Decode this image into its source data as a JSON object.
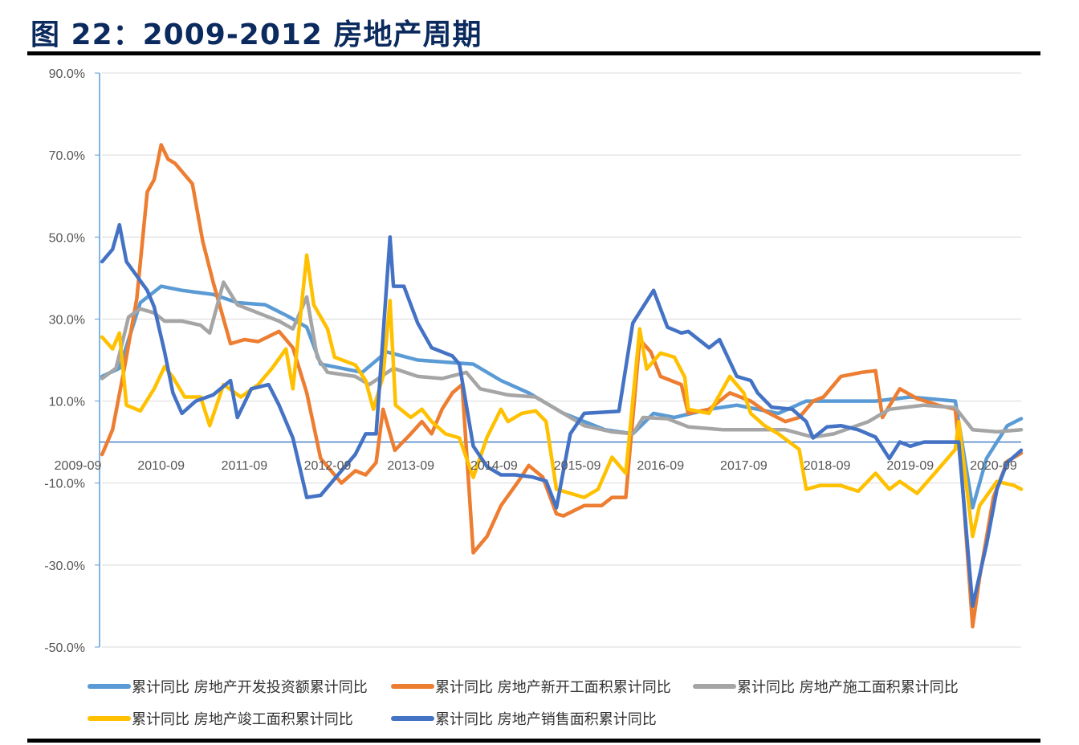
{
  "title": "图 22：2009-2012 房地产周期",
  "chart_data": {
    "type": "line",
    "title": "图 22：2009-2012 房地产周期",
    "xlabel": "",
    "ylabel": "",
    "x_unit": "months since 2009-09",
    "ylim": [
      -50,
      90
    ],
    "y_ticks": [
      "90.0%",
      "70.0%",
      "50.0%",
      "30.0%",
      "10.0%",
      "-10.0%",
      "-30.0%",
      "-50.0%"
    ],
    "y_tick_values": [
      90,
      70,
      50,
      30,
      10,
      -10,
      -30,
      -50
    ],
    "x_ticks": [
      "2009-09",
      "2010-09",
      "2011-09",
      "2012-09",
      "2013-09",
      "2014-09",
      "2015-09",
      "2016-09",
      "2017-09",
      "2018-09",
      "2019-09",
      "2020-09"
    ],
    "grid": true,
    "legend_position": "bottom",
    "series": [
      {
        "name": "累计同比 房地产开发投资额累计同比",
        "color": "#5b9bd5",
        "points": [
          [
            3.5,
            16
          ],
          [
            6,
            18
          ],
          [
            9,
            34
          ],
          [
            12,
            38
          ],
          [
            15,
            37
          ],
          [
            19.5,
            36
          ],
          [
            23,
            34
          ],
          [
            27,
            33.5
          ],
          [
            30.5,
            30.5
          ],
          [
            33,
            28
          ],
          [
            35,
            19
          ],
          [
            41,
            17
          ],
          [
            44.5,
            22
          ],
          [
            49,
            20
          ],
          [
            57,
            19
          ],
          [
            61,
            15
          ],
          [
            65,
            12
          ],
          [
            70,
            7
          ],
          [
            76,
            3
          ],
          [
            80,
            2
          ],
          [
            83,
            7
          ],
          [
            86,
            6
          ],
          [
            91,
            8
          ],
          [
            95,
            9
          ],
          [
            101,
            7
          ],
          [
            105,
            10
          ],
          [
            110,
            10
          ],
          [
            115,
            10
          ],
          [
            120,
            11
          ],
          [
            126.5,
            10
          ],
          [
            129,
            -16
          ],
          [
            131,
            -4
          ],
          [
            134,
            4
          ],
          [
            136,
            5.7
          ]
        ]
      },
      {
        "name": "累计同比 房地产新开工面积累计同比",
        "color": "#ed7d31",
        "points": [
          [
            3.5,
            -3
          ],
          [
            5,
            3
          ],
          [
            6.7,
            18
          ],
          [
            8.5,
            35
          ],
          [
            10,
            61
          ],
          [
            11,
            64
          ],
          [
            12,
            72.5
          ],
          [
            13,
            69
          ],
          [
            14,
            68
          ],
          [
            16.5,
            63
          ],
          [
            18,
            49
          ],
          [
            19.5,
            39
          ],
          [
            22,
            24
          ],
          [
            24,
            25
          ],
          [
            26,
            24.5
          ],
          [
            29,
            27
          ],
          [
            31,
            23
          ],
          [
            33,
            12
          ],
          [
            35,
            -4
          ],
          [
            38,
            -10
          ],
          [
            40,
            -7
          ],
          [
            41.5,
            -8
          ],
          [
            43,
            -5
          ],
          [
            44,
            8
          ],
          [
            45.7,
            -2
          ],
          [
            48,
            2
          ],
          [
            49.6,
            5
          ],
          [
            51,
            2
          ],
          [
            52.5,
            8
          ],
          [
            54,
            12
          ],
          [
            55.4,
            14
          ],
          [
            57,
            -27
          ],
          [
            59,
            -23
          ],
          [
            61,
            -15.5
          ],
          [
            63.5,
            -9.6
          ],
          [
            65,
            -5.7
          ],
          [
            67,
            -8.5
          ],
          [
            69,
            -17.5
          ],
          [
            70,
            -18
          ],
          [
            73,
            -15.5
          ],
          [
            75.5,
            -15.5
          ],
          [
            77,
            -13.5
          ],
          [
            79,
            -13.5
          ],
          [
            81,
            25
          ],
          [
            82.6,
            22
          ],
          [
            84,
            16
          ],
          [
            87,
            14
          ],
          [
            88,
            7
          ],
          [
            91,
            8
          ],
          [
            94,
            12
          ],
          [
            97,
            10
          ],
          [
            99,
            7.6
          ],
          [
            102,
            5
          ],
          [
            104,
            6
          ],
          [
            106,
            10
          ],
          [
            107.5,
            11
          ],
          [
            110,
            16
          ],
          [
            113,
            17
          ],
          [
            115,
            17.4
          ],
          [
            116,
            6
          ],
          [
            118.5,
            13
          ],
          [
            121,
            10.6
          ],
          [
            124,
            9
          ],
          [
            126.5,
            8
          ],
          [
            127.5,
            -9.6
          ],
          [
            129,
            -45
          ],
          [
            130,
            -33
          ],
          [
            132,
            -13.5
          ],
          [
            134,
            -4.7
          ],
          [
            136,
            -2.7
          ]
        ]
      },
      {
        "name": "累计同比 房地产施工面积累计同比",
        "color": "#a5a5a5",
        "points": [
          [
            3.5,
            15.5
          ],
          [
            5.5,
            18
          ],
          [
            7.3,
            30.5
          ],
          [
            9,
            32.5
          ],
          [
            11,
            31.5
          ],
          [
            12.5,
            29.5
          ],
          [
            15,
            29.5
          ],
          [
            17.7,
            28.5
          ],
          [
            19,
            26.6
          ],
          [
            21,
            39
          ],
          [
            23,
            33.5
          ],
          [
            26,
            31.5
          ],
          [
            29,
            29.5
          ],
          [
            31,
            27.6
          ],
          [
            33,
            35.4
          ],
          [
            34.5,
            20.7
          ],
          [
            36,
            17
          ],
          [
            40,
            16
          ],
          [
            42,
            14
          ],
          [
            45.5,
            18
          ],
          [
            49,
            16
          ],
          [
            52.5,
            15.5
          ],
          [
            56,
            17
          ],
          [
            58,
            13
          ],
          [
            62,
            11.5
          ],
          [
            66,
            11
          ],
          [
            70,
            7
          ],
          [
            73,
            4
          ],
          [
            77,
            2.5
          ],
          [
            80,
            2
          ],
          [
            81.5,
            6
          ],
          [
            85,
            5.7
          ],
          [
            88,
            3.7
          ],
          [
            93,
            3
          ],
          [
            98,
            3
          ],
          [
            102,
            3
          ],
          [
            106,
            1.2
          ],
          [
            109,
            2
          ],
          [
            114,
            5
          ],
          [
            117,
            8
          ],
          [
            122,
            9
          ],
          [
            126.5,
            8.4
          ],
          [
            129,
            3
          ],
          [
            132.5,
            2.5
          ],
          [
            136,
            3
          ]
        ]
      },
      {
        "name": "累计同比 房地产竣工面积累计同比",
        "color": "#ffc000",
        "points": [
          [
            3.5,
            25.6
          ],
          [
            5,
            22.7
          ],
          [
            6,
            26.6
          ],
          [
            7,
            9
          ],
          [
            9,
            7.6
          ],
          [
            11,
            13
          ],
          [
            12.5,
            18.4
          ],
          [
            13.7,
            15.8
          ],
          [
            15.4,
            11
          ],
          [
            17.7,
            11
          ],
          [
            19,
            4
          ],
          [
            21,
            14
          ],
          [
            23.5,
            11
          ],
          [
            26,
            14
          ],
          [
            28,
            18
          ],
          [
            30,
            22.7
          ],
          [
            31,
            13
          ],
          [
            33,
            45.6
          ],
          [
            34,
            33.5
          ],
          [
            36,
            27.6
          ],
          [
            37,
            20.7
          ],
          [
            40,
            18.8
          ],
          [
            41.5,
            15
          ],
          [
            42.6,
            8
          ],
          [
            44,
            16
          ],
          [
            45,
            34.5
          ],
          [
            45.8,
            9
          ],
          [
            48,
            6
          ],
          [
            49.6,
            8
          ],
          [
            51,
            5
          ],
          [
            53,
            2
          ],
          [
            55,
            1
          ],
          [
            57,
            -8.6
          ],
          [
            59,
            1.2
          ],
          [
            61,
            8
          ],
          [
            62,
            5
          ],
          [
            64,
            7
          ],
          [
            66,
            7.6
          ],
          [
            67.5,
            5
          ],
          [
            69,
            -11.5
          ],
          [
            71,
            -12.5
          ],
          [
            73,
            -13.5
          ],
          [
            75,
            -11.5
          ],
          [
            77,
            -3.7
          ],
          [
            79,
            -7.6
          ],
          [
            81,
            27.6
          ],
          [
            82,
            17.8
          ],
          [
            84,
            21.7
          ],
          [
            86,
            20.7
          ],
          [
            87.5,
            15.8
          ],
          [
            88,
            8
          ],
          [
            91,
            7
          ],
          [
            94,
            16
          ],
          [
            96,
            12
          ],
          [
            97,
            7
          ],
          [
            99,
            4
          ],
          [
            101,
            2
          ],
          [
            104,
            -1.8
          ],
          [
            105,
            -11.5
          ],
          [
            107,
            -10.6
          ],
          [
            110,
            -10.6
          ],
          [
            112.5,
            -12
          ],
          [
            115,
            -7.6
          ],
          [
            117,
            -11.5
          ],
          [
            118.5,
            -9.6
          ],
          [
            121,
            -12.5
          ],
          [
            124,
            -6.7
          ],
          [
            126.5,
            -1.8
          ],
          [
            127,
            5
          ],
          [
            129,
            -23
          ],
          [
            130,
            -15.5
          ],
          [
            132.5,
            -9.6
          ],
          [
            135,
            -10.6
          ],
          [
            136,
            -11.5
          ]
        ]
      },
      {
        "name": "累计同比 房地产销售面积累计同比",
        "color": "#4472c4",
        "points": [
          [
            3.5,
            44
          ],
          [
            5,
            47
          ],
          [
            6,
            53
          ],
          [
            7,
            44
          ],
          [
            10,
            37
          ],
          [
            11,
            33
          ],
          [
            12.5,
            22
          ],
          [
            13.7,
            12
          ],
          [
            15,
            7
          ],
          [
            17,
            10
          ],
          [
            19.5,
            11.5
          ],
          [
            22,
            15
          ],
          [
            23,
            6
          ],
          [
            25,
            13
          ],
          [
            27.5,
            14
          ],
          [
            29,
            9
          ],
          [
            31,
            1
          ],
          [
            33,
            -13.5
          ],
          [
            35,
            -13
          ],
          [
            37,
            -9
          ],
          [
            40,
            -3
          ],
          [
            41.5,
            2
          ],
          [
            43,
            2
          ],
          [
            45,
            50
          ],
          [
            45.5,
            38
          ],
          [
            47,
            38
          ],
          [
            49,
            29
          ],
          [
            51,
            23
          ],
          [
            54,
            21
          ],
          [
            55,
            19
          ],
          [
            57,
            -1
          ],
          [
            59,
            -6
          ],
          [
            61,
            -8
          ],
          [
            63,
            -8
          ],
          [
            65.5,
            -8.5
          ],
          [
            67.5,
            -9.5
          ],
          [
            69,
            -16
          ],
          [
            71,
            2
          ],
          [
            73,
            7
          ],
          [
            78,
            7.5
          ],
          [
            80,
            29
          ],
          [
            81.5,
            33
          ],
          [
            83,
            37
          ],
          [
            85,
            28
          ],
          [
            87,
            26.6
          ],
          [
            88,
            27
          ],
          [
            91,
            23
          ],
          [
            92.5,
            25
          ],
          [
            95,
            16
          ],
          [
            97,
            15
          ],
          [
            98,
            12
          ],
          [
            100,
            8.5
          ],
          [
            103,
            8
          ],
          [
            105,
            5
          ],
          [
            106,
            1
          ],
          [
            108,
            3.7
          ],
          [
            110,
            4
          ],
          [
            112.5,
            3
          ],
          [
            115,
            1.2
          ],
          [
            117,
            -4
          ],
          [
            118.5,
            0
          ],
          [
            120,
            -1
          ],
          [
            122,
            0
          ],
          [
            127,
            0
          ],
          [
            129,
            -40
          ],
          [
            131,
            -25
          ],
          [
            132.5,
            -11.5
          ],
          [
            134,
            -5
          ],
          [
            136,
            -2
          ]
        ]
      }
    ]
  }
}
